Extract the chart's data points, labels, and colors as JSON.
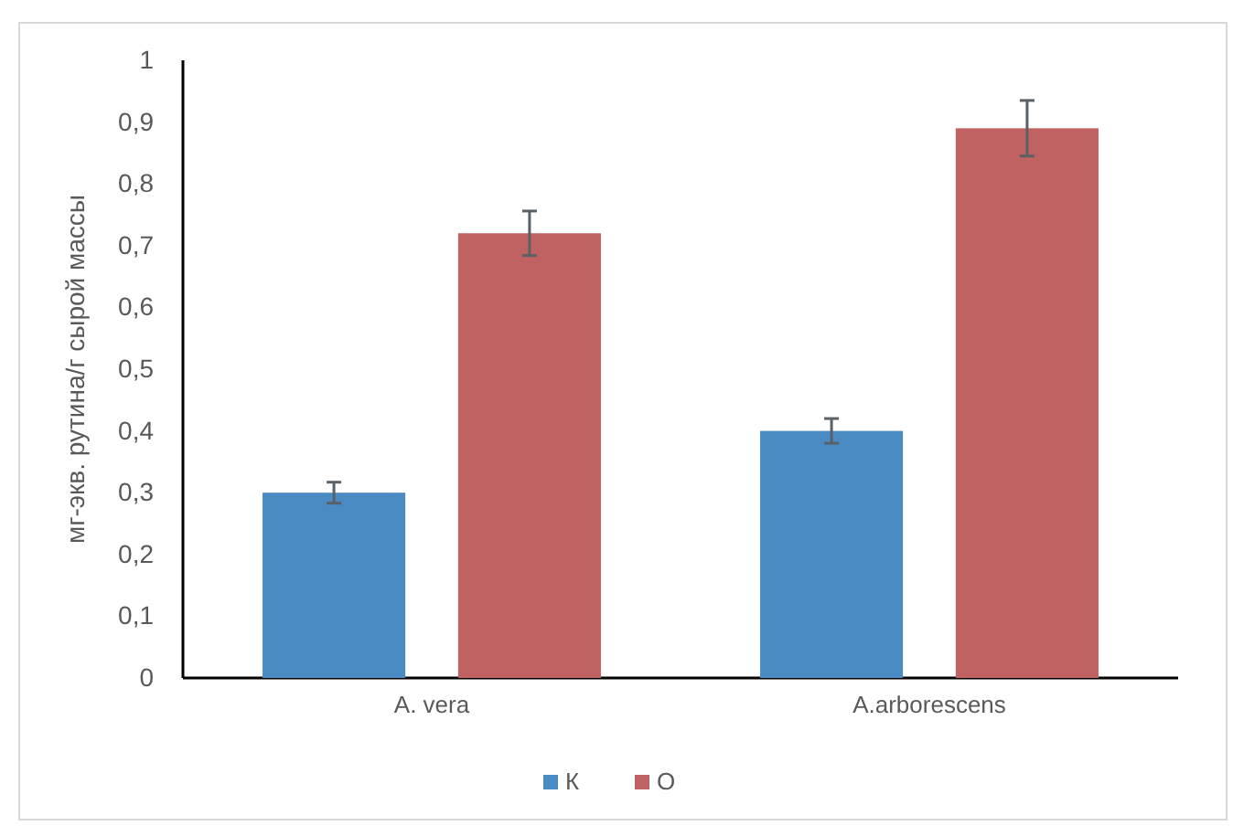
{
  "chart_data": {
    "type": "bar",
    "ylabel": "мг-экв. рутина/г сырой массы",
    "categories": [
      "A. vera",
      "A.arborescens"
    ],
    "series": [
      {
        "name": "К",
        "color": "#4a8bc4",
        "values": [
          0.3,
          0.4
        ],
        "errors": [
          0.017,
          0.02
        ]
      },
      {
        "name": "О",
        "color": "#c06262",
        "values": [
          0.72,
          0.89
        ],
        "errors": [
          0.036,
          0.045
        ]
      }
    ],
    "ylim": [
      0,
      1
    ],
    "yticks": [
      0,
      {
        "value": 0.1,
        "label": "0,1"
      },
      {
        "value": 0.2,
        "label": "0,2"
      },
      {
        "value": 0.3,
        "label": "0,3"
      },
      {
        "value": 0.4,
        "label": "0,4"
      },
      {
        "value": 0.5,
        "label": "0,5"
      },
      {
        "value": 0.6,
        "label": "0,6"
      },
      {
        "value": 0.7,
        "label": "0,7"
      },
      {
        "value": 0.8,
        "label": "0,8"
      },
      {
        "value": 0.9,
        "label": "0,9"
      },
      1
    ],
    "grid": false,
    "legend": "bottom"
  }
}
